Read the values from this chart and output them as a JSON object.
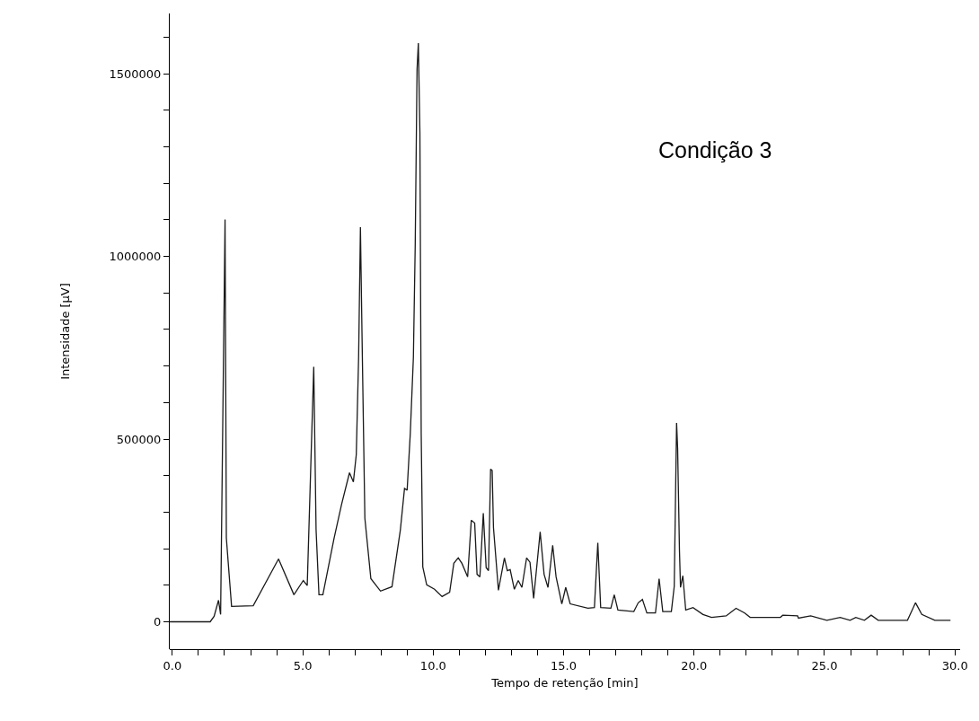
{
  "chart_data": {
    "type": "line",
    "xlabel": "Tempo de retenção [min]",
    "ylabel": "Intensidade [µV]",
    "annotations": [
      "Condição 3"
    ],
    "xlim": [
      -0.1,
      30.2
    ],
    "ylim": [
      -75000,
      1665000
    ],
    "xticks": [
      {
        "value": 0,
        "label": "0.0"
      },
      {
        "value": 1,
        "label": null
      },
      {
        "value": 2,
        "label": null
      },
      {
        "value": 3,
        "label": null
      },
      {
        "value": 4,
        "label": null
      },
      {
        "value": 5,
        "label": "5.0"
      },
      {
        "value": 6,
        "label": null
      },
      {
        "value": 7,
        "label": null
      },
      {
        "value": 8,
        "label": null
      },
      {
        "value": 9,
        "label": null
      },
      {
        "value": 10,
        "label": "10.0"
      },
      {
        "value": 11,
        "label": null
      },
      {
        "value": 12,
        "label": null
      },
      {
        "value": 13,
        "label": null
      },
      {
        "value": 14,
        "label": null
      },
      {
        "value": 15,
        "label": "15.0"
      },
      {
        "value": 16,
        "label": null
      },
      {
        "value": 17,
        "label": null
      },
      {
        "value": 18,
        "label": null
      },
      {
        "value": 19,
        "label": null
      },
      {
        "value": 20,
        "label": "20.0"
      },
      {
        "value": 21,
        "label": null
      },
      {
        "value": 22,
        "label": null
      },
      {
        "value": 23,
        "label": null
      },
      {
        "value": 24,
        "label": null
      },
      {
        "value": 25,
        "label": "25.0"
      },
      {
        "value": 26,
        "label": null
      },
      {
        "value": 27,
        "label": null
      },
      {
        "value": 28,
        "label": null
      },
      {
        "value": 29,
        "label": null
      },
      {
        "value": 30,
        "label": "30.0"
      }
    ],
    "yticks": [
      0,
      {
        "value": 100000,
        "label": null
      },
      {
        "value": 200000,
        "label": null
      },
      {
        "value": 300000,
        "label": null
      },
      {
        "value": 400000,
        "label": null
      },
      500000,
      {
        "value": 600000,
        "label": null
      },
      {
        "value": 700000,
        "label": null
      },
      {
        "value": 800000,
        "label": null
      },
      {
        "value": 900000,
        "label": null
      },
      1000000,
      {
        "value": 1100000,
        "label": null
      },
      {
        "value": 1200000,
        "label": null
      },
      {
        "value": 1300000,
        "label": null
      },
      {
        "value": 1400000,
        "label": null
      },
      1500000,
      {
        "value": 1600000,
        "label": null
      }
    ],
    "grid": false,
    "marker": "none",
    "line_style": "solid",
    "series": [
      {
        "color": "#1a1a1a",
        "x": [
          -0.1,
          1.45,
          1.6,
          1.77,
          1.85,
          2.02,
          2.07,
          2.27,
          3.1,
          4.07,
          4.66,
          5.02,
          5.17,
          5.42,
          5.51,
          5.62,
          5.77,
          6.2,
          6.49,
          6.79,
          6.94,
          7.05,
          7.14,
          7.21,
          7.27,
          7.38,
          7.61,
          7.98,
          8.42,
          8.74,
          8.9,
          9.0,
          9.12,
          9.24,
          9.31,
          9.38,
          9.43,
          9.49,
          9.54,
          9.6,
          9.75,
          10.05,
          10.34,
          10.63,
          10.79,
          10.96,
          11.1,
          11.32,
          11.46,
          11.59,
          11.68,
          11.79,
          11.92,
          12.03,
          12.12,
          12.2,
          12.26,
          12.31,
          12.5,
          12.73,
          12.84,
          12.95,
          13.11,
          13.26,
          13.4,
          13.58,
          13.71,
          13.85,
          14.1,
          14.25,
          14.4,
          14.58,
          14.71,
          14.93,
          15.08,
          15.25,
          15.93,
          16.18,
          16.31,
          16.42,
          16.81,
          16.94,
          17.08,
          17.69,
          17.86,
          18.02,
          18.19,
          18.52,
          18.66,
          18.8,
          19.13,
          19.24,
          19.33,
          19.37,
          19.44,
          19.48,
          19.57,
          19.68,
          19.96,
          20.34,
          20.67,
          21.23,
          21.61,
          21.94,
          22.15,
          23.31,
          23.4,
          23.97,
          24.0,
          24.47,
          25.09,
          25.6,
          25.98,
          26.2,
          26.53,
          26.79,
          27.06,
          28.18,
          28.49,
          28.73,
          29.23,
          29.83
        ],
        "values": [
          0,
          0,
          15000,
          59000,
          20000,
          1101000,
          229000,
          42000,
          44000,
          172000,
          74000,
          113000,
          99000,
          698000,
          251000,
          74000,
          74000,
          229000,
          322000,
          408000,
          383000,
          457000,
          723000,
          1080000,
          787000,
          283000,
          118000,
          84000,
          96000,
          251000,
          365000,
          360000,
          514000,
          723000,
          1030000,
          1512000,
          1584000,
          1338000,
          514000,
          150000,
          101000,
          89000,
          69000,
          81000,
          160000,
          175000,
          160000,
          123000,
          278000,
          270000,
          130000,
          123000,
          297000,
          148000,
          140000,
          418000,
          414000,
          258000,
          86000,
          175000,
          140000,
          143000,
          89000,
          113000,
          94000,
          175000,
          163000,
          64000,
          246000,
          130000,
          94000,
          209000,
          123000,
          49000,
          94000,
          49000,
          37000,
          39000,
          216000,
          39000,
          37000,
          74000,
          32000,
          28000,
          52000,
          61000,
          24000,
          24000,
          118000,
          28000,
          28000,
          97000,
          544000,
          475000,
          196000,
          94000,
          126000,
          32000,
          39000,
          20000,
          12000,
          16000,
          37000,
          24000,
          12000,
          12000,
          18000,
          16000,
          10000,
          16000,
          4000,
          12000,
          4000,
          12000,
          4000,
          18000,
          4000,
          4000,
          52000,
          20000,
          4000,
          4000
        ]
      }
    ]
  }
}
